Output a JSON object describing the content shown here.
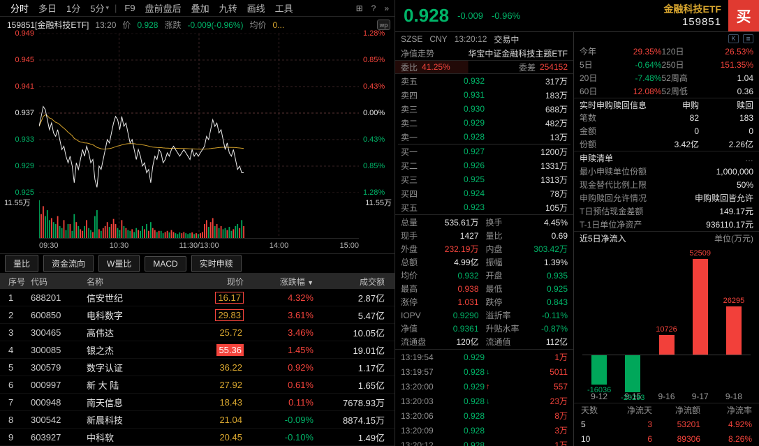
{
  "toolbar": {
    "views": [
      {
        "label": "分时",
        "active": true
      },
      {
        "label": "多日",
        "active": false
      },
      {
        "label": "1分",
        "active": false
      },
      {
        "label": "5分",
        "active": false
      }
    ],
    "caret": "▾",
    "separator": "|",
    "tools": [
      "F9",
      "盘前盘后",
      "叠加",
      "九转",
      "画线",
      "工具"
    ],
    "icons": [
      {
        "name": "panel-grid-icon",
        "glyph": "⊞"
      },
      {
        "name": "help-icon",
        "glyph": "?"
      },
      {
        "name": "collapse-icon",
        "glyph": "»"
      }
    ]
  },
  "chart": {
    "title_code": "159851[金融科技ETF]",
    "title_time": "13:20",
    "price_label": "价",
    "price_value": "0.928",
    "change_label": "涨跌",
    "change_value": "-0.009(-0.96%)",
    "avg_label": "均价",
    "avg_value": "0...",
    "badge": "wp",
    "axis_left": [
      "0.949",
      "0.945",
      "0.941",
      "0.937",
      "0.933",
      "0.929",
      "0.925"
    ],
    "axis_right": [
      "1.28%",
      "0.85%",
      "0.43%",
      "0.00%",
      "0.43%",
      "0.85%",
      "1.28%"
    ],
    "vol_label_left": "11.55万",
    "vol_label_right": "11.55万",
    "x_labels": [
      "09:30",
      "10:30",
      "11:30/13:00",
      "14:00",
      "15:00"
    ],
    "y_min": 0.925,
    "y_max": 0.949,
    "prev_close": 0.937,
    "x_extent": 0.64,
    "prices": [
      0.935,
      0.9365,
      0.938,
      0.9375,
      0.936,
      0.9345,
      0.9355,
      0.934,
      0.9335,
      0.9345,
      0.933,
      0.9315,
      0.932,
      0.9305,
      0.9295,
      0.9305,
      0.929,
      0.9265,
      0.9295,
      0.9285,
      0.93,
      0.9315,
      0.9305,
      0.932,
      0.931,
      0.9295,
      0.93,
      0.927,
      0.9258,
      0.929,
      0.9285,
      0.93,
      0.9315,
      0.933,
      0.9325,
      0.934,
      0.9355,
      0.9365,
      0.936,
      0.9345,
      0.9365,
      0.935,
      0.9355,
      0.934,
      0.9325,
      0.933,
      0.9315,
      0.93,
      0.9315,
      0.9305,
      0.929,
      0.9295,
      0.928,
      0.9285,
      0.9265,
      0.929,
      0.9305,
      0.93,
      0.9315,
      0.931,
      0.9295,
      0.93,
      0.931,
      0.9305,
      0.9315,
      0.932,
      0.9315,
      0.931,
      0.9305,
      0.931,
      0.9315,
      0.931,
      0.9305,
      0.93,
      0.9315,
      0.9305,
      0.931,
      0.9305,
      0.931,
      0.9315,
      0.932,
      0.9335,
      0.933,
      0.9345,
      0.936,
      0.935,
      0.9355,
      0.934,
      0.9345,
      0.933,
      0.9315,
      0.9325,
      0.931,
      0.9305,
      0.9315,
      0.93,
      0.9285,
      0.929,
      0.928,
      0.928
    ],
    "volumes": [
      95,
      60,
      80,
      55,
      70,
      45,
      50,
      40,
      35,
      55,
      30,
      25,
      45,
      20,
      35,
      35,
      18,
      60,
      40,
      30,
      22,
      18,
      30,
      45,
      25,
      20,
      15,
      55,
      70,
      22,
      18,
      25,
      30,
      40,
      28,
      35,
      48,
      35,
      25,
      20,
      45,
      30,
      25,
      20,
      18,
      22,
      15,
      25,
      20,
      18,
      30,
      22,
      35,
      18,
      40,
      25,
      20,
      15,
      18,
      18,
      12,
      15,
      18,
      14,
      20,
      15,
      12,
      10,
      14,
      12,
      15,
      12,
      10,
      12,
      14,
      10,
      12,
      10,
      12,
      15,
      35,
      45,
      28,
      40,
      50,
      30,
      35,
      25,
      30,
      22,
      25,
      20,
      28,
      18,
      22,
      30,
      35,
      25,
      45,
      30
    ]
  },
  "tabs": [
    "量比",
    "资金流向",
    "W量比",
    "MACD",
    "实时申赎"
  ],
  "stock_table": {
    "headers": {
      "no": "序号",
      "code": "代码",
      "name": "名称",
      "price": "现价",
      "chg": "涨跌幅",
      "sort_arrow": "▼",
      "amt": "成交额"
    },
    "rows": [
      {
        "no": "1",
        "code": "688201",
        "name": "信安世纪",
        "price": "16.17",
        "chg": "4.32%",
        "amt": "2.87亿",
        "dir": "up",
        "price_style": "outline"
      },
      {
        "no": "2",
        "code": "600850",
        "name": "电科数字",
        "price": "29.83",
        "chg": "3.61%",
        "amt": "5.47亿",
        "dir": "up",
        "price_style": "outline"
      },
      {
        "no": "3",
        "code": "300465",
        "name": "高伟达",
        "price": "25.72",
        "chg": "3.46%",
        "amt": "10.05亿",
        "dir": "up",
        "price_style": "plain"
      },
      {
        "no": "4",
        "code": "300085",
        "name": "银之杰",
        "price": "55.36",
        "chg": "1.45%",
        "amt": "19.01亿",
        "dir": "up",
        "price_style": "fill"
      },
      {
        "no": "5",
        "code": "300579",
        "name": "数字认证",
        "price": "36.22",
        "chg": "0.92%",
        "amt": "1.17亿",
        "dir": "up",
        "price_style": "plain"
      },
      {
        "no": "6",
        "code": "000997",
        "name": "新 大 陆",
        "price": "27.92",
        "chg": "0.61%",
        "amt": "1.65亿",
        "dir": "up",
        "price_style": "plain"
      },
      {
        "no": "7",
        "code": "000948",
        "name": "南天信息",
        "price": "18.43",
        "chg": "0.11%",
        "amt": "7678.93万",
        "dir": "up",
        "price_style": "plain"
      },
      {
        "no": "8",
        "code": "300542",
        "name": "新晨科技",
        "price": "21.04",
        "chg": "-0.09%",
        "amt": "8874.15万",
        "dir": "down",
        "price_style": "plain"
      },
      {
        "no": "9",
        "code": "603927",
        "name": "中科软",
        "price": "20.45",
        "chg": "-0.10%",
        "amt": "1.49亿",
        "dir": "down",
        "price_style": "plain"
      }
    ]
  },
  "quote": {
    "price": "0.928",
    "change": "-0.009",
    "pct": "-0.96%",
    "name": "金融科技ETF",
    "code": "159851",
    "buy_label": "买",
    "exchange": "SZSE",
    "currency": "CNY",
    "time": "13:20:12",
    "status": "交易中",
    "nav_label": "净值走势",
    "nav_name": "华宝中证金融科技主题ETF",
    "weibi_label": "委比",
    "weibi": "41.25%",
    "weicha_label": "委差",
    "weicha": "254152"
  },
  "book": {
    "asks": [
      {
        "label": "卖五",
        "price": "0.932",
        "vol": "317万"
      },
      {
        "label": "卖四",
        "price": "0.931",
        "vol": "183万"
      },
      {
        "label": "卖三",
        "price": "0.930",
        "vol": "688万"
      },
      {
        "label": "卖二",
        "price": "0.929",
        "vol": "482万"
      },
      {
        "label": "卖一",
        "price": "0.928",
        "vol": "13万"
      }
    ],
    "bids": [
      {
        "label": "买一",
        "price": "0.927",
        "vol": "1200万"
      },
      {
        "label": "买二",
        "price": "0.926",
        "vol": "1331万"
      },
      {
        "label": "买三",
        "price": "0.925",
        "vol": "1313万"
      },
      {
        "label": "买四",
        "price": "0.924",
        "vol": "78万"
      },
      {
        "label": "买五",
        "price": "0.923",
        "vol": "105万"
      }
    ]
  },
  "stats": [
    {
      "l1": "总量",
      "v1": "535.61万",
      "k1": "w",
      "l2": "换手",
      "v2": "4.45%",
      "k2": "w"
    },
    {
      "l1": "现手",
      "v1": "1427",
      "k1": "w",
      "l2": "量比",
      "v2": "0.69",
      "k2": "w"
    },
    {
      "l1": "外盘",
      "v1": "232.19万",
      "k1": "r",
      "l2": "内盘",
      "v2": "303.42万",
      "k2": "g"
    },
    {
      "l1": "总额",
      "v1": "4.99亿",
      "k1": "w",
      "l2": "振幅",
      "v2": "1.39%",
      "k2": "w"
    },
    {
      "l1": "均价",
      "v1": "0.932",
      "k1": "g",
      "l2": "开盘",
      "v2": "0.935",
      "k2": "g"
    },
    {
      "l1": "最高",
      "v1": "0.938",
      "k1": "r",
      "l2": "最低",
      "v2": "0.925",
      "k2": "g"
    },
    {
      "l1": "涨停",
      "v1": "1.031",
      "k1": "r",
      "l2": "跌停",
      "v2": "0.843",
      "k2": "g"
    },
    {
      "l1": "IOPV",
      "v1": "0.9290",
      "k1": "g",
      "l2": "溢折率",
      "v2": "-0.11%",
      "k2": "g"
    },
    {
      "l1": "净值",
      "v1": "0.9361",
      "k1": "g",
      "l2": "升贴水率",
      "v2": "-0.87%",
      "k2": "g"
    },
    {
      "l1": "流通盘",
      "v1": "120亿",
      "k1": "w",
      "l2": "流通值",
      "v2": "112亿",
      "k2": "w"
    }
  ],
  "ticks": [
    {
      "t": "13:19:54",
      "p": "0.929",
      "arrow": "",
      "adir": "",
      "v": "1万",
      "vk": "r"
    },
    {
      "t": "13:19:57",
      "p": "0.928",
      "arrow": "↓",
      "adir": "down",
      "v": "5011",
      "vk": "r"
    },
    {
      "t": "13:20:00",
      "p": "0.929",
      "arrow": "↑",
      "adir": "up",
      "v": "557",
      "vk": "r"
    },
    {
      "t": "13:20:03",
      "p": "0.928",
      "arrow": "↓",
      "adir": "down",
      "v": "23万",
      "vk": "r"
    },
    {
      "t": "13:20:06",
      "p": "0.928",
      "arrow": "",
      "adir": "",
      "v": "8万",
      "vk": "r"
    },
    {
      "t": "13:20:09",
      "p": "0.928",
      "arrow": "",
      "adir": "",
      "v": "3万",
      "vk": "r"
    },
    {
      "t": "13:20:12",
      "p": "0.928",
      "arrow": "",
      "adir": "",
      "v": "1万",
      "vk": "r"
    }
  ],
  "info": {
    "mini_icons": [
      {
        "name": "kline-mini-icon",
        "glyph": "K"
      },
      {
        "name": "list-mini-icon",
        "glyph": "≣"
      }
    ],
    "perf": [
      {
        "l": "今年",
        "v": "29.35%",
        "k": "r"
      },
      {
        "l": "120日",
        "v": "26.53%",
        "k": "r"
      },
      {
        "l": "5日",
        "v": "-0.64%",
        "k": "g"
      },
      {
        "l": "250日",
        "v": "151.35%",
        "k": "r"
      },
      {
        "l": "20日",
        "v": "-7.48%",
        "k": "g"
      },
      {
        "l": "52周高",
        "v": "1.04",
        "k": "w"
      },
      {
        "l": "60日",
        "v": "12.08%",
        "k": "r"
      },
      {
        "l": "52周低",
        "v": "0.36",
        "k": "w"
      }
    ],
    "rt": {
      "title": "实时申购赎回信息",
      "cols": [
        "申购",
        "赎回"
      ],
      "rows": [
        {
          "label": "笔数",
          "a": "82",
          "b": "183"
        },
        {
          "label": "金额",
          "a": "0",
          "b": "0"
        },
        {
          "label": "份额",
          "a": "3.42亿",
          "b": "2.26亿"
        }
      ]
    },
    "list": {
      "title": "申赎清单",
      "more": "…",
      "rows": [
        {
          "label": "最小申赎单位份额",
          "value": "1,000,000"
        },
        {
          "label": "现金替代比例上限",
          "value": "50%"
        },
        {
          "label": "申购赎回允许情况",
          "value": "申购赎回皆允许"
        },
        {
          "label": "T日预估现金差额",
          "value": "149.17元"
        },
        {
          "label": "T-1日单位净资产",
          "value": "936110.17元"
        }
      ]
    },
    "flow": {
      "title": "近5日净流入",
      "unit": "单位(万元)",
      "categories": [
        "9-12",
        "9-15",
        "9-16",
        "9-17",
        "9-18"
      ],
      "values": [
        -16036,
        -20293,
        10726,
        52509,
        26295
      ]
    },
    "flow_table": {
      "headers": [
        "天数",
        "净流天",
        "净流额",
        "净流率"
      ],
      "rows": [
        {
          "cells": [
            "5",
            "3",
            "53201",
            "4.92%"
          ]
        },
        {
          "cells": [
            "10",
            "6",
            "89306",
            "8.26%"
          ]
        }
      ]
    }
  }
}
